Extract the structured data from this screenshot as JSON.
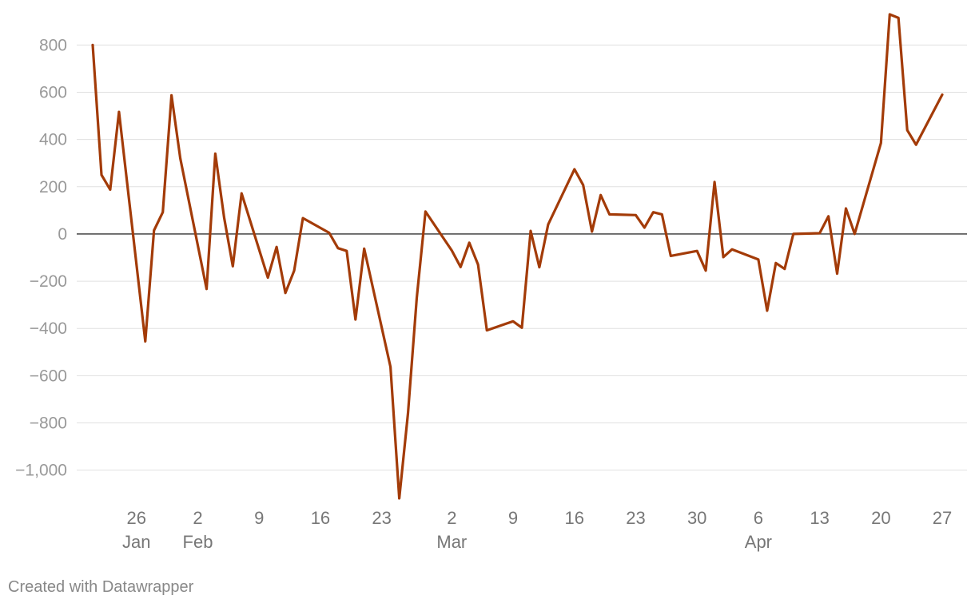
{
  "chart_data": {
    "type": "line",
    "title": "",
    "xlabel": "",
    "ylabel": "",
    "ylim": [
      -1130,
      930
    ],
    "xlim": [
      "2020-01-21",
      "2020-04-28"
    ],
    "grid": true,
    "colors": {
      "line": "#a33b08",
      "grid": "#e0e0e0",
      "zero": "#333333"
    },
    "y_ticks": [
      {
        "value": 800,
        "label": "800"
      },
      {
        "value": 600,
        "label": "600"
      },
      {
        "value": 400,
        "label": "400"
      },
      {
        "value": 200,
        "label": "200"
      },
      {
        "value": 0,
        "label": "0"
      },
      {
        "value": -200,
        "label": "−200"
      },
      {
        "value": -400,
        "label": "−400"
      },
      {
        "value": -600,
        "label": "−600"
      },
      {
        "value": -800,
        "label": "−800"
      },
      {
        "value": -1000,
        "label": "−1,000"
      }
    ],
    "x_ticks": [
      {
        "date": "2020-01-26",
        "label": "26",
        "month": "Jan"
      },
      {
        "date": "2020-02-02",
        "label": "2",
        "month": "Feb"
      },
      {
        "date": "2020-02-09",
        "label": "9",
        "month": ""
      },
      {
        "date": "2020-02-16",
        "label": "16",
        "month": ""
      },
      {
        "date": "2020-02-23",
        "label": "23",
        "month": ""
      },
      {
        "date": "2020-03-02",
        "label": "2",
        "month": "Mar"
      },
      {
        "date": "2020-03-09",
        "label": "9",
        "month": ""
      },
      {
        "date": "2020-03-16",
        "label": "16",
        "month": ""
      },
      {
        "date": "2020-03-23",
        "label": "23",
        "month": ""
      },
      {
        "date": "2020-03-30",
        "label": "30",
        "month": ""
      },
      {
        "date": "2020-04-06",
        "label": "6",
        "month": "Apr"
      },
      {
        "date": "2020-04-13",
        "label": "13",
        "month": ""
      },
      {
        "date": "2020-04-20",
        "label": "20",
        "month": ""
      },
      {
        "date": "2020-04-27",
        "label": "27",
        "month": ""
      }
    ],
    "series": [
      {
        "points": [
          [
            "2020-01-21",
            800
          ],
          [
            "2020-01-22",
            250
          ],
          [
            "2020-01-23",
            188
          ],
          [
            "2020-01-24",
            517
          ],
          [
            "2020-01-27",
            -455
          ],
          [
            "2020-01-28",
            15
          ],
          [
            "2020-01-29",
            92
          ],
          [
            "2020-01-30",
            587
          ],
          [
            "2020-01-31",
            320
          ],
          [
            "2020-02-03",
            -233
          ],
          [
            "2020-02-04",
            340
          ],
          [
            "2020-02-05",
            70
          ],
          [
            "2020-02-06",
            -137
          ],
          [
            "2020-02-07",
            172
          ],
          [
            "2020-02-10",
            -185
          ],
          [
            "2020-02-11",
            -55
          ],
          [
            "2020-02-12",
            -250
          ],
          [
            "2020-02-13",
            -155
          ],
          [
            "2020-02-14",
            67
          ],
          [
            "2020-02-17",
            5
          ],
          [
            "2020-02-18",
            -60
          ],
          [
            "2020-02-19",
            -72
          ],
          [
            "2020-02-20",
            -362
          ],
          [
            "2020-02-21",
            -62
          ],
          [
            "2020-02-24",
            -563
          ],
          [
            "2020-02-25",
            -1120
          ],
          [
            "2020-02-26",
            -760
          ],
          [
            "2020-02-27",
            -270
          ],
          [
            "2020-02-28",
            95
          ],
          [
            "2020-03-02",
            -70
          ],
          [
            "2020-03-03",
            -140
          ],
          [
            "2020-03-04",
            -37
          ],
          [
            "2020-03-05",
            -130
          ],
          [
            "2020-03-06",
            -408
          ],
          [
            "2020-03-09",
            -370
          ],
          [
            "2020-03-10",
            -397
          ],
          [
            "2020-03-11",
            13
          ],
          [
            "2020-03-12",
            -141
          ],
          [
            "2020-03-13",
            40
          ],
          [
            "2020-03-16",
            274
          ],
          [
            "2020-03-17",
            207
          ],
          [
            "2020-03-18",
            10
          ],
          [
            "2020-03-19",
            165
          ],
          [
            "2020-03-20",
            83
          ],
          [
            "2020-03-23",
            80
          ],
          [
            "2020-03-24",
            27
          ],
          [
            "2020-03-25",
            92
          ],
          [
            "2020-03-26",
            83
          ],
          [
            "2020-03-27",
            -93
          ],
          [
            "2020-03-30",
            -72
          ],
          [
            "2020-03-31",
            -155
          ],
          [
            "2020-04-01",
            220
          ],
          [
            "2020-04-02",
            -98
          ],
          [
            "2020-04-03",
            -65
          ],
          [
            "2020-04-06",
            -108
          ],
          [
            "2020-04-07",
            -325
          ],
          [
            "2020-04-08",
            -123
          ],
          [
            "2020-04-09",
            -148
          ],
          [
            "2020-04-10",
            0
          ],
          [
            "2020-04-13",
            3
          ],
          [
            "2020-04-14",
            75
          ],
          [
            "2020-04-15",
            -168
          ],
          [
            "2020-04-16",
            108
          ],
          [
            "2020-04-17",
            0
          ],
          [
            "2020-04-20",
            385
          ],
          [
            "2020-04-21",
            930
          ],
          [
            "2020-04-22",
            915
          ],
          [
            "2020-04-23",
            440
          ],
          [
            "2020-04-24",
            378
          ],
          [
            "2020-04-27",
            590
          ]
        ]
      }
    ]
  },
  "footer": {
    "credit": "Created with Datawrapper"
  }
}
